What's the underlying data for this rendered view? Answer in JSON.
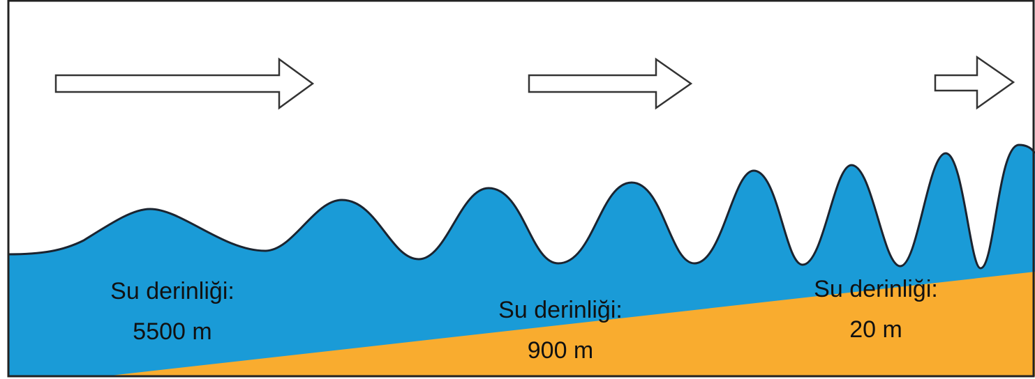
{
  "labels": [
    {
      "line1": "Su derinliği:",
      "line2": "5500 m"
    },
    {
      "line1": "Su derinliği:",
      "line2": "900 m"
    },
    {
      "line1": "Su derinliği:",
      "line2": "20 m"
    }
  ]
}
